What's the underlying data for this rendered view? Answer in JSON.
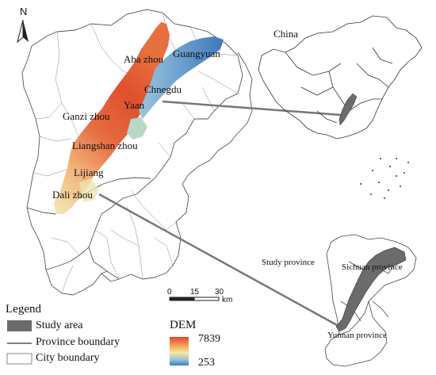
{
  "north_label": "N",
  "main_map": {
    "places": [
      {
        "id": "aba",
        "label": "Aba zhou"
      },
      {
        "id": "guangyuan",
        "label": "Guangyuan"
      },
      {
        "id": "chengdu",
        "label": "Chnegdu"
      },
      {
        "id": "yaan",
        "label": "Yaan"
      },
      {
        "id": "ganzi",
        "label": "Ganzi zhou"
      },
      {
        "id": "liangshan",
        "label": "Liangshan zhou"
      },
      {
        "id": "lijiang",
        "label": "Lijiang"
      },
      {
        "id": "dali",
        "label": "Dali zhou"
      }
    ]
  },
  "inset_china": {
    "label": "China"
  },
  "inset_provinces": {
    "study_label": "Study province",
    "sichuan_label": "Sichuan province",
    "yunnan_label": "Yunnan province"
  },
  "scale_bar": {
    "ticks": [
      "0",
      "15",
      "30"
    ],
    "unit": "km"
  },
  "legend": {
    "title": "Legend",
    "items": [
      {
        "label": "Study area",
        "symbol": "filled-dark-gray"
      },
      {
        "label": "Province boundary",
        "symbol": "line"
      },
      {
        "label": "City boundary",
        "symbol": "box"
      }
    ]
  },
  "dem": {
    "title": "DEM",
    "max": "7839",
    "min": "253",
    "colors": [
      "#e8412a",
      "#f3a15a",
      "#f6e89a",
      "#9fc8d8",
      "#3a7ec0"
    ]
  },
  "colors": {
    "study_area": "#6b6b6b",
    "boundary": "#444444"
  }
}
